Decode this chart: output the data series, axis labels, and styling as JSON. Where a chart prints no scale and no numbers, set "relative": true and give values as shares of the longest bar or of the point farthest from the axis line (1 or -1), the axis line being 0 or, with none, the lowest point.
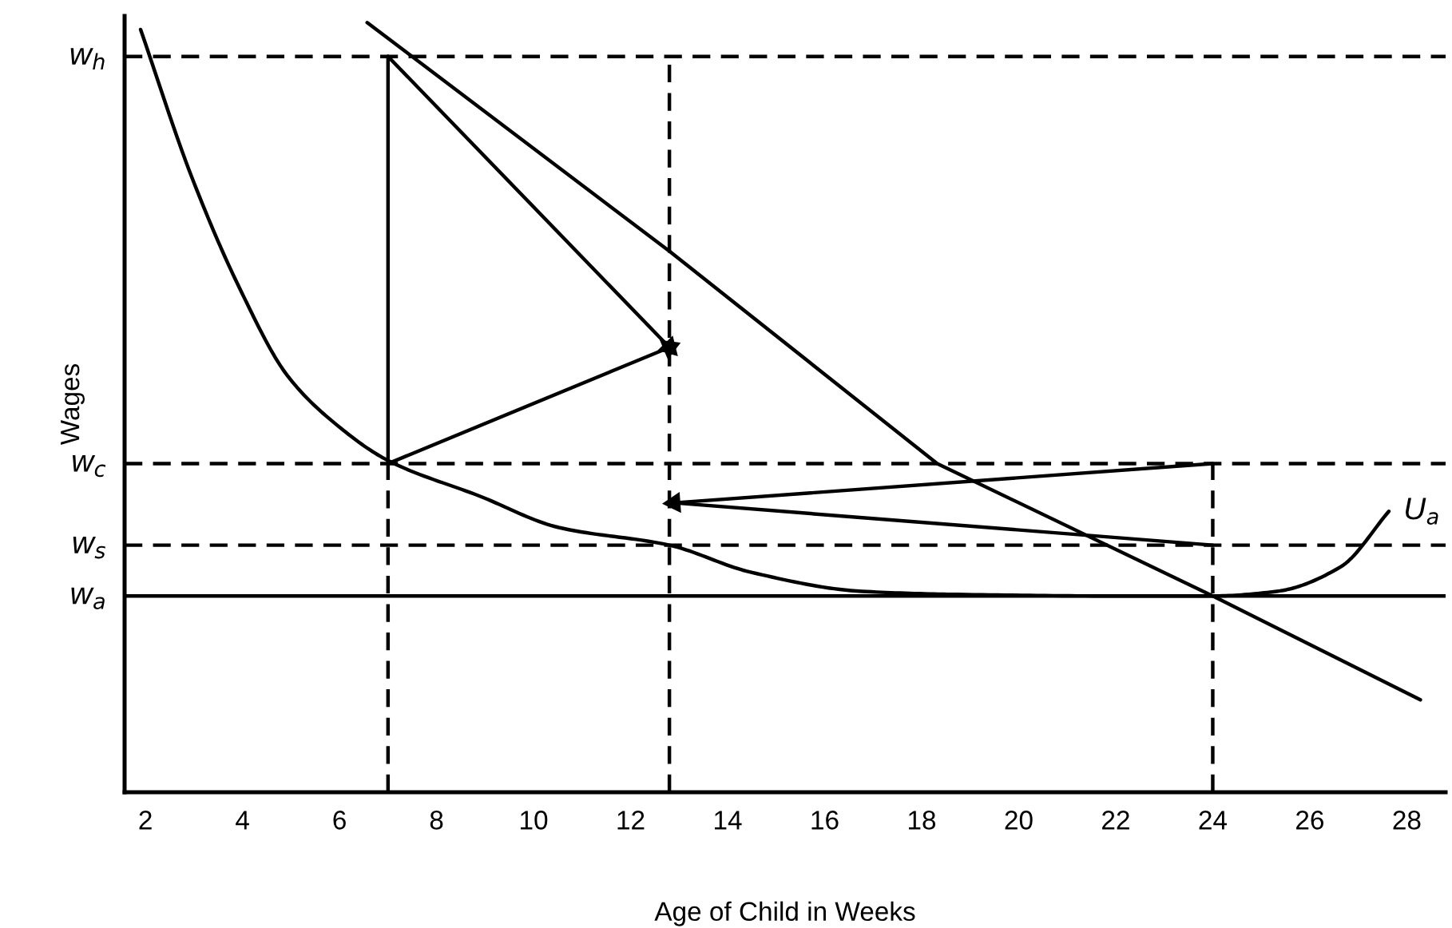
{
  "chart_data": {
    "type": "line",
    "xlabel": "Age of Child in Weeks",
    "ylabel": "Wages",
    "relative": true,
    "xlim": [
      1.57,
      28.8
    ],
    "xticks": [
      2,
      4,
      6,
      8,
      10,
      12,
      14,
      16,
      18,
      20,
      22,
      24,
      26,
      28
    ],
    "grid": false,
    "legend": false,
    "ref_lines": [
      {
        "axis": "y",
        "value": 0.956,
        "label": "w$_{h}$",
        "color": "#000000",
        "line_style": "dashed"
      },
      {
        "axis": "y",
        "value": 0.427,
        "label": "w$_{c}$",
        "color": "#000000",
        "line_style": "dashed"
      },
      {
        "axis": "y",
        "value": 0.321,
        "label": "w$_{s}$",
        "color": "#000000",
        "line_style": "dashed"
      },
      {
        "axis": "y",
        "value": 0.255,
        "label": "w$_{a}$",
        "color": "#000000",
        "line_style": "solid"
      }
    ],
    "annotations": [
      {
        "text": "U$_{a}$",
        "x": 27.63,
        "y": 0.365
      }
    ],
    "series": [
      {
        "color": "#000000",
        "line_style": "solid",
        "x": [
          1.9,
          2.95,
          3.94,
          4.93,
          5.91,
          7.0,
          8.88,
          10.52,
          12.8,
          14.47,
          16.77,
          18.74,
          22.03,
          24.0,
          25.32,
          26.64,
          27.63
        ],
        "values": [
          0.991,
          0.8,
          0.655,
          0.541,
          0.479,
          0.431,
          0.385,
          0.344,
          0.321,
          0.286,
          0.261,
          0.257,
          0.255,
          0.255,
          0.261,
          0.293,
          0.365
        ]
      },
      {
        "color": "#000000",
        "line_style": "solid",
        "x": [
          6.57,
          12.8,
          18.32,
          24.0,
          28.28
        ],
        "values": [
          1.0,
          0.703,
          0.427,
          0.255,
          0.12
        ]
      },
      {
        "color": "#000000",
        "line_style": "dashed",
        "x": [
          7.0,
          7.0
        ],
        "values": [
          0,
          0.427
        ]
      },
      {
        "color": "#000000",
        "line_style": "solid",
        "x": [
          7.0,
          7.0
        ],
        "values": [
          0.427,
          0.956
        ]
      },
      {
        "color": "#000000",
        "line_style": "dashed",
        "x": [
          12.8,
          12.8
        ],
        "values": [
          0,
          0.956
        ]
      },
      {
        "color": "#000000",
        "line_style": "dashed",
        "x": [
          24.0,
          24.0
        ],
        "values": [
          0,
          0.427
        ]
      },
      {
        "color": "#000000",
        "line_style": "solid",
        "marker": "triangle",
        "x": [
          7.0,
          12.8
        ],
        "values": [
          0.956,
          0.578
        ]
      },
      {
        "color": "#000000",
        "line_style": "solid",
        "marker": "triangle",
        "x": [
          7.0,
          12.8
        ],
        "values": [
          0.427,
          0.578
        ]
      },
      {
        "color": "#000000",
        "line_style": "solid",
        "marker": "triangle",
        "x": [
          24.0,
          12.9
        ],
        "values": [
          0.427,
          0.376
        ]
      },
      {
        "color": "#000000",
        "line_style": "solid",
        "x": [
          24.0,
          12.9
        ],
        "values": [
          0.321,
          0.376
        ]
      }
    ]
  }
}
